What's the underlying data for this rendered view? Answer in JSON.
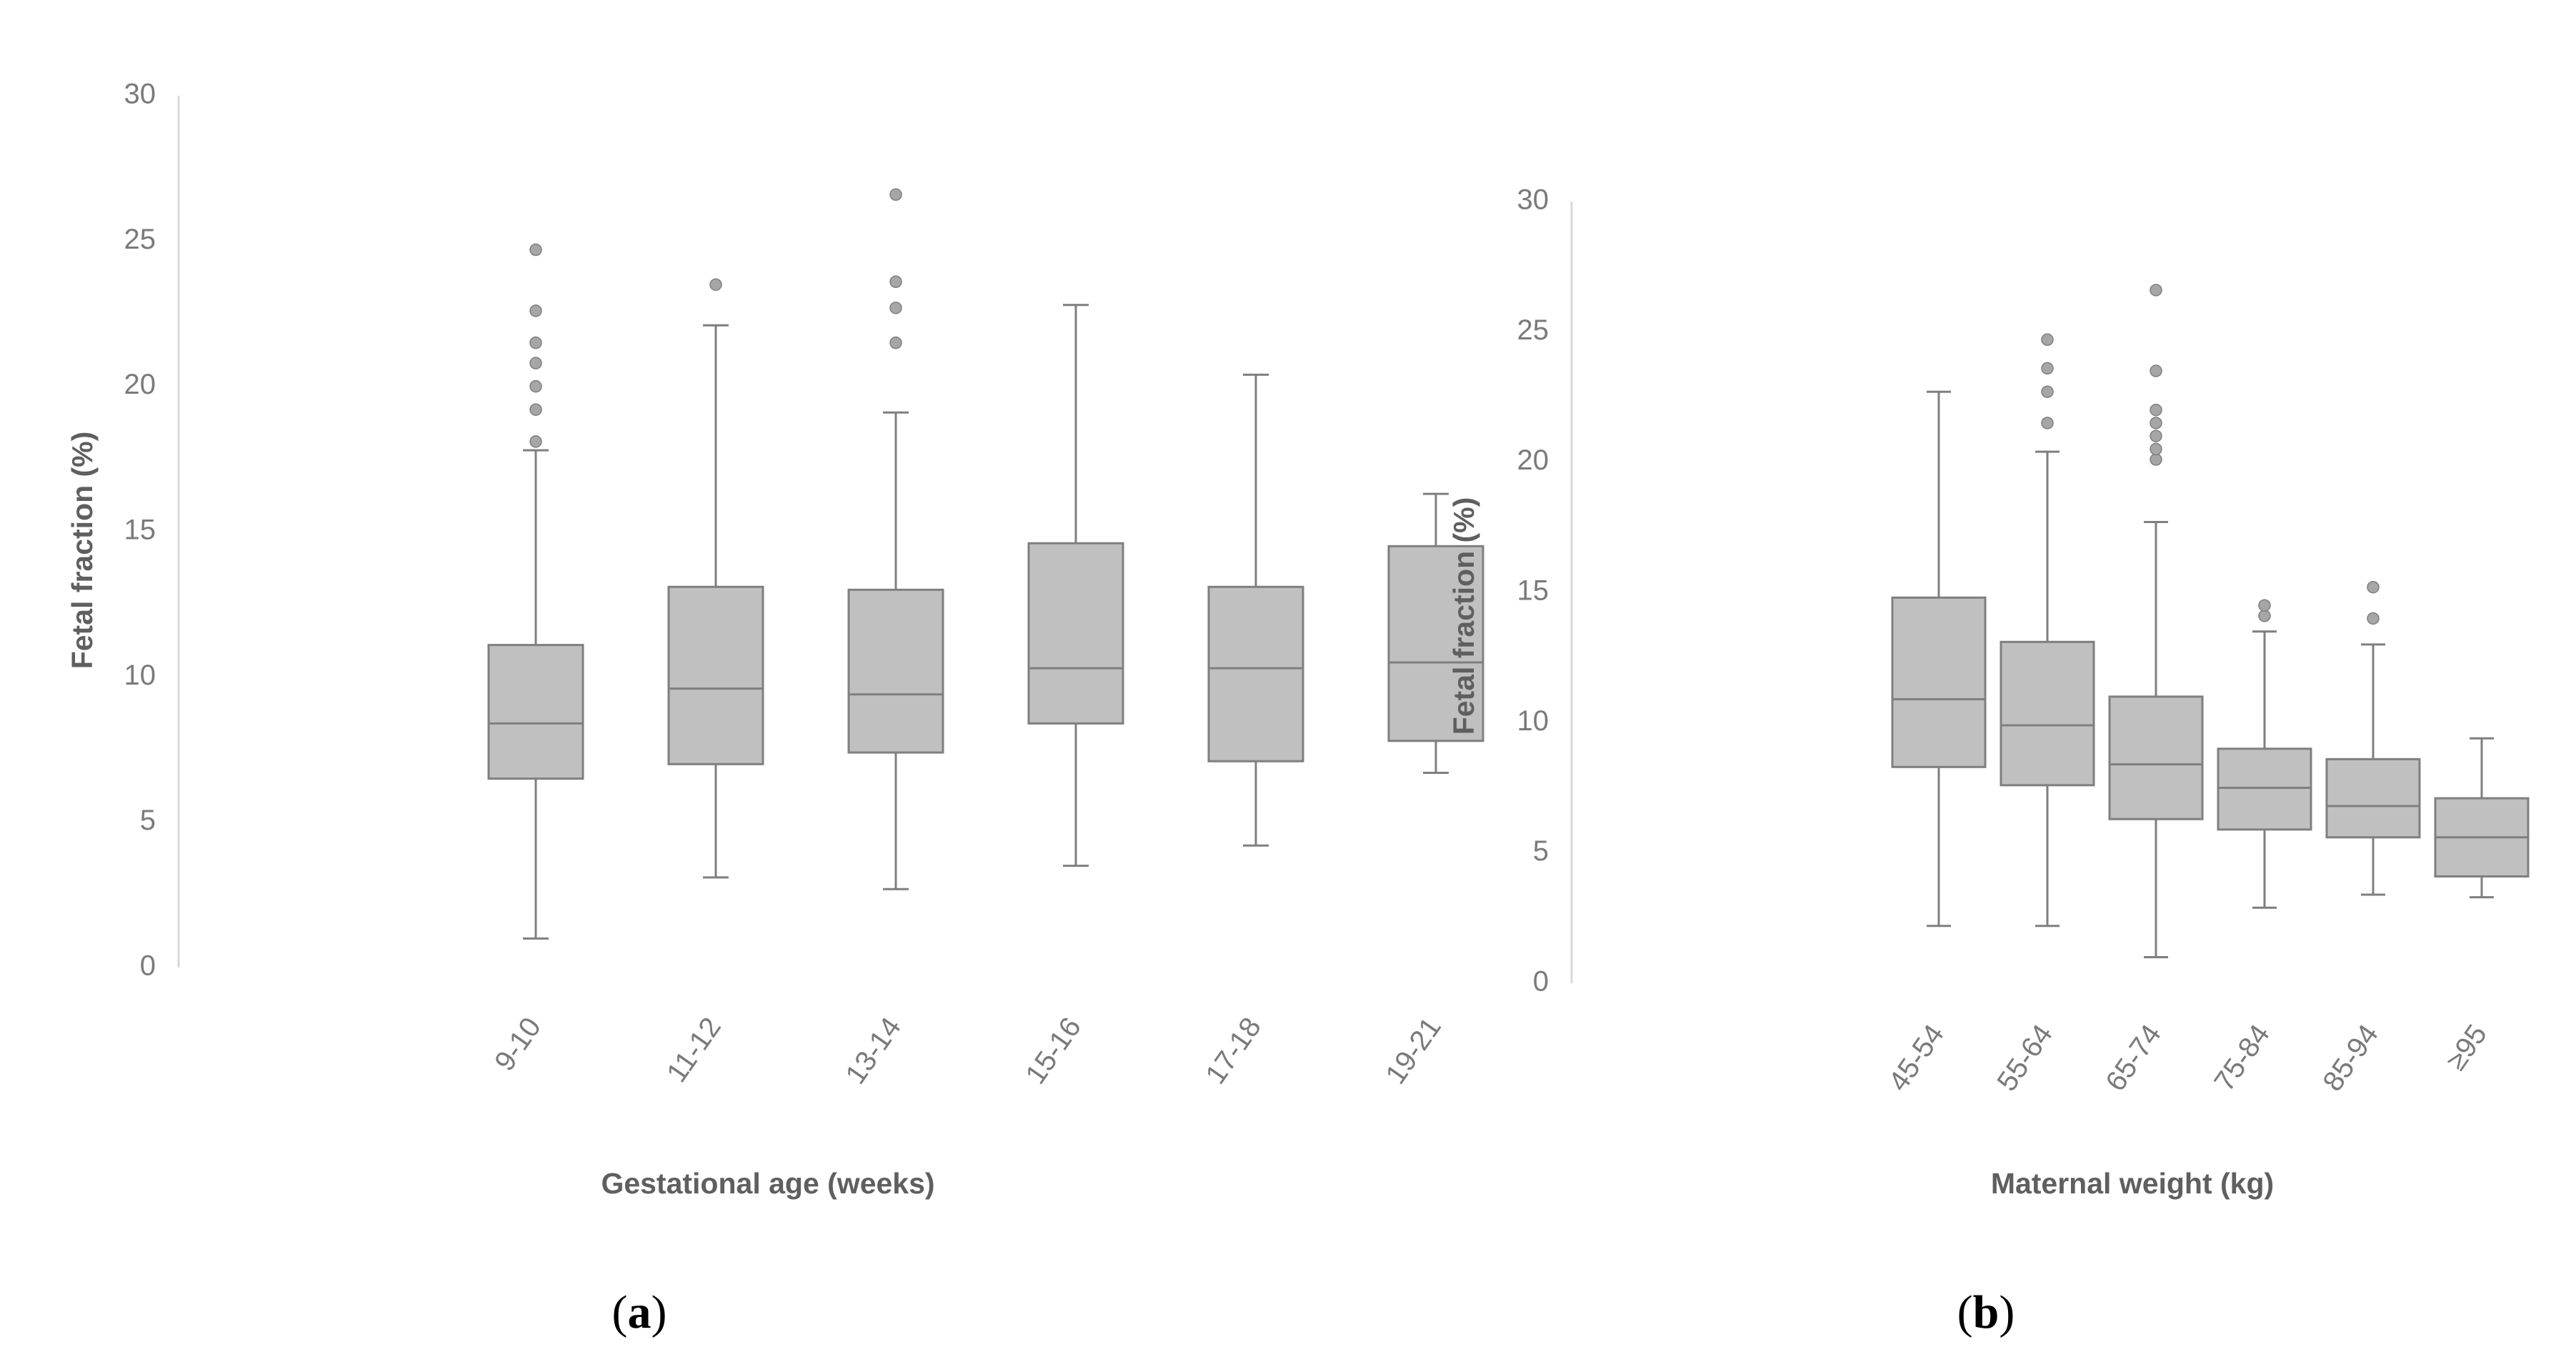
{
  "colors": {
    "box_fill": "#c0c0c0",
    "box_stroke": "#7f7f7f",
    "axis": "#d9d9d9",
    "outlier": "#a6a6a6"
  },
  "panels": [
    {
      "paren_open": "(",
      "letter": "a",
      "paren_close": ")"
    },
    {
      "paren_open": "(",
      "letter": "b",
      "paren_close": ")"
    }
  ],
  "chart_data": [
    {
      "type": "boxplot",
      "title": "",
      "xlabel": "Gestational age (weeks)",
      "ylabel": "Fetal fraction (%)",
      "ylim": [
        0,
        30
      ],
      "yticks": [
        0,
        5,
        10,
        15,
        20,
        25,
        30
      ],
      "grid": false,
      "categories": [
        "9-10",
        "11-12",
        "13-14",
        "15-16",
        "17-18",
        "19-21"
      ],
      "boxes": [
        {
          "min": 1.0,
          "q1": 6.5,
          "median": 8.4,
          "q3": 11.1,
          "max": 17.8,
          "outliers": [
            18.1,
            19.2,
            20.0,
            20.8,
            21.5,
            22.6,
            24.7
          ]
        },
        {
          "min": 3.1,
          "q1": 7.0,
          "median": 9.6,
          "q3": 13.1,
          "max": 22.1,
          "outliers": [
            23.5
          ]
        },
        {
          "min": 2.7,
          "q1": 7.4,
          "median": 9.4,
          "q3": 13.0,
          "max": 19.1,
          "outliers": [
            21.5,
            22.7,
            23.6,
            26.6
          ]
        },
        {
          "min": 3.5,
          "q1": 8.4,
          "median": 10.3,
          "q3": 14.6,
          "max": 22.8,
          "outliers": []
        },
        {
          "min": 4.2,
          "q1": 7.1,
          "median": 10.3,
          "q3": 13.1,
          "max": 20.4,
          "outliers": []
        },
        {
          "min": 6.7,
          "q1": 7.8,
          "median": 10.5,
          "q3": 14.5,
          "max": 16.3,
          "outliers": []
        }
      ]
    },
    {
      "type": "boxplot",
      "title": "",
      "xlabel": "Maternal weight (kg)",
      "ylabel": "Fetal fraction (%)",
      "ylim": [
        0,
        30
      ],
      "yticks": [
        0,
        5,
        10,
        15,
        20,
        25,
        30
      ],
      "grid": false,
      "categories": [
        "45-54",
        "55-64",
        "65-74",
        "75-84",
        "85-94",
        "≥95"
      ],
      "boxes": [
        {
          "min": 2.2,
          "q1": 8.3,
          "median": 10.9,
          "q3": 14.8,
          "max": 22.7,
          "outliers": []
        },
        {
          "min": 2.2,
          "q1": 7.6,
          "median": 9.9,
          "q3": 13.1,
          "max": 20.4,
          "outliers": [
            21.5,
            22.7,
            23.6,
            24.7
          ]
        },
        {
          "min": 1.0,
          "q1": 6.3,
          "median": 8.4,
          "q3": 11.0,
          "max": 17.7,
          "outliers": [
            20.1,
            20.5,
            21.0,
            21.5,
            22.0,
            23.5,
            26.6
          ]
        },
        {
          "min": 2.9,
          "q1": 5.9,
          "median": 7.5,
          "q3": 9.0,
          "max": 13.5,
          "outliers": [
            14.1,
            14.5
          ]
        },
        {
          "min": 3.4,
          "q1": 5.6,
          "median": 6.8,
          "q3": 8.6,
          "max": 13.0,
          "outliers": [
            14.0,
            15.2
          ]
        },
        {
          "min": 3.3,
          "q1": 4.1,
          "median": 5.6,
          "q3": 7.1,
          "max": 9.4,
          "outliers": []
        }
      ]
    }
  ]
}
